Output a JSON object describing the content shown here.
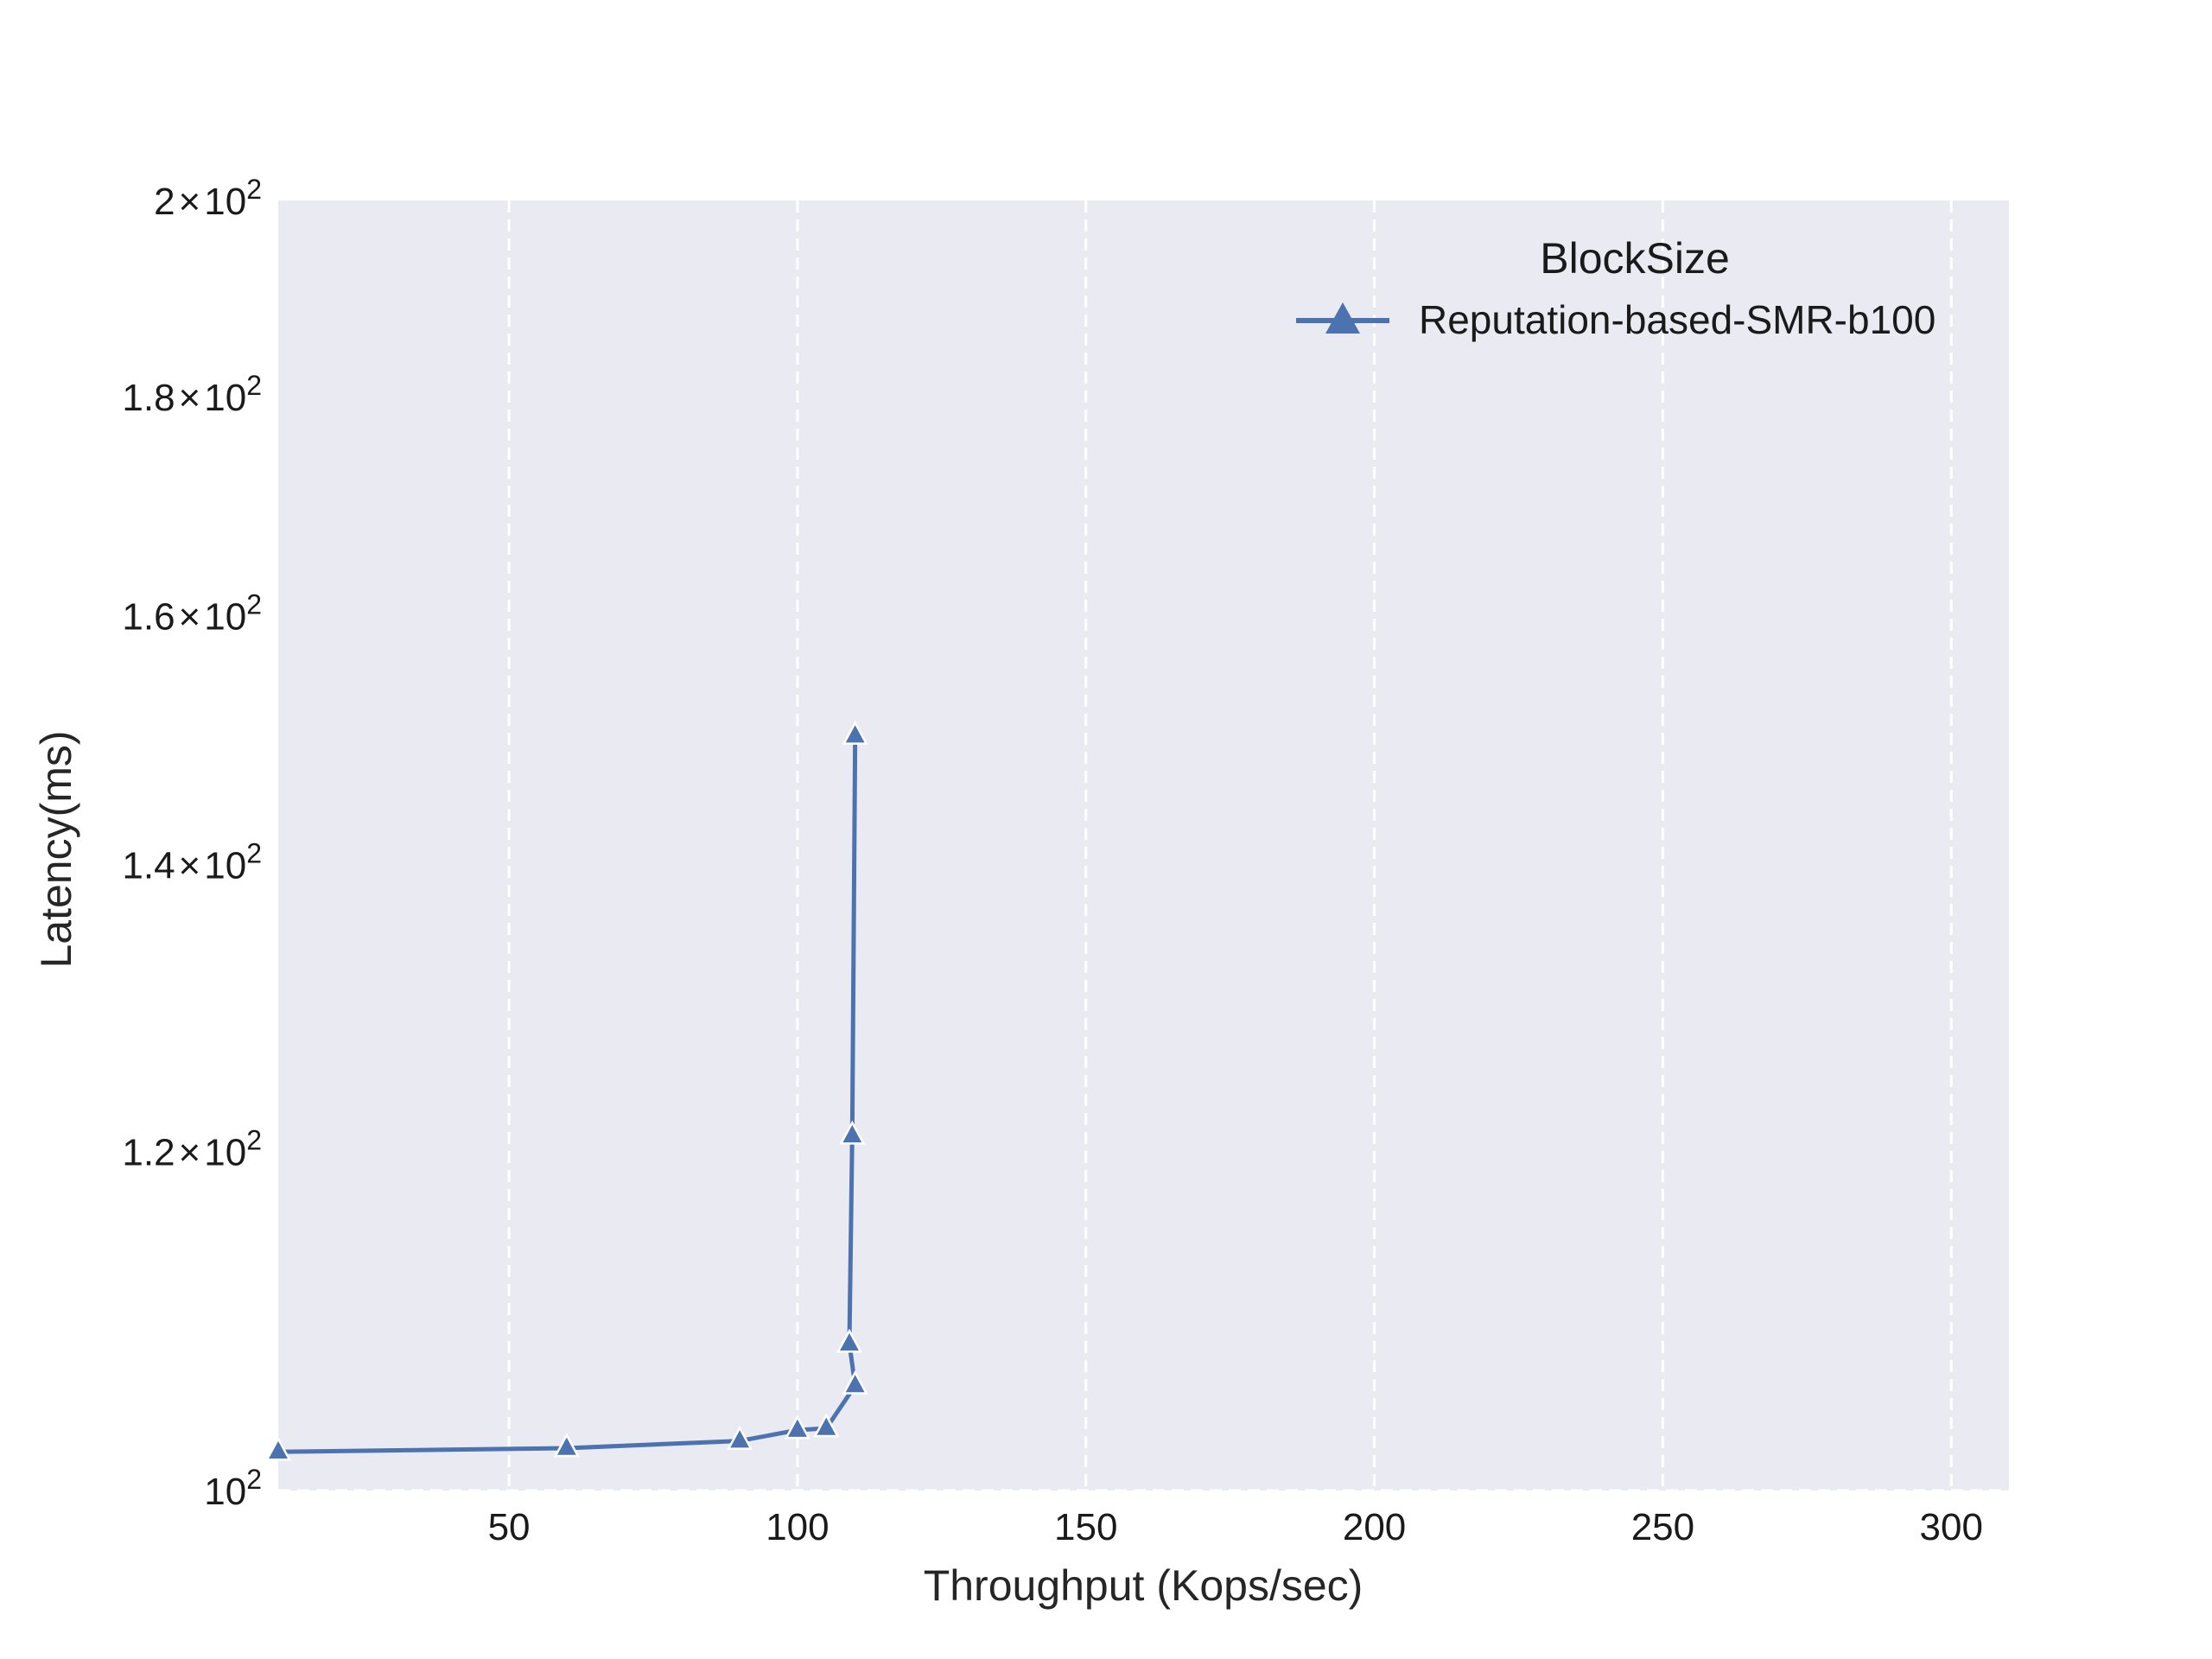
{
  "chart_data": {
    "type": "line",
    "xlabel": "Throughput (Kops/sec)",
    "ylabel": "Latency(ms)",
    "xlim": [
      10,
      310
    ],
    "ylim": [
      100,
      200
    ],
    "yscale": "log",
    "grid": "x-dashed",
    "x_ticks": [
      {
        "value": 50,
        "label": "50"
      },
      {
        "value": 100,
        "label": "100"
      },
      {
        "value": 150,
        "label": "150"
      },
      {
        "value": 200,
        "label": "200"
      },
      {
        "value": 250,
        "label": "250"
      },
      {
        "value": 300,
        "label": "300"
      }
    ],
    "y_ticks": [
      {
        "value": 100,
        "mant": "",
        "exp": "2"
      },
      {
        "value": 120,
        "mant": "1.2",
        "exp": "2"
      },
      {
        "value": 140,
        "mant": "1.4",
        "exp": "2"
      },
      {
        "value": 160,
        "mant": "1.6",
        "exp": "2"
      },
      {
        "value": 180,
        "mant": "1.8",
        "exp": "2"
      },
      {
        "value": 200,
        "mant": "2",
        "exp": "2"
      }
    ],
    "legend": {
      "title": "BlockSize",
      "position": "upper-right"
    },
    "series": [
      {
        "name": "Reputation-based-SMR-b100",
        "color": "#4c72b0",
        "marker": "triangle",
        "points": [
          {
            "x": 10,
            "y": 102.1
          },
          {
            "x": 60,
            "y": 102.3
          },
          {
            "x": 90,
            "y": 102.7
          },
          {
            "x": 100,
            "y": 103.3
          },
          {
            "x": 105,
            "y": 103.4
          },
          {
            "x": 110,
            "y": 105.8
          },
          {
            "x": 109,
            "y": 108.2
          },
          {
            "x": 109.5,
            "y": 121.0
          },
          {
            "x": 110,
            "y": 150.0
          }
        ]
      }
    ]
  }
}
